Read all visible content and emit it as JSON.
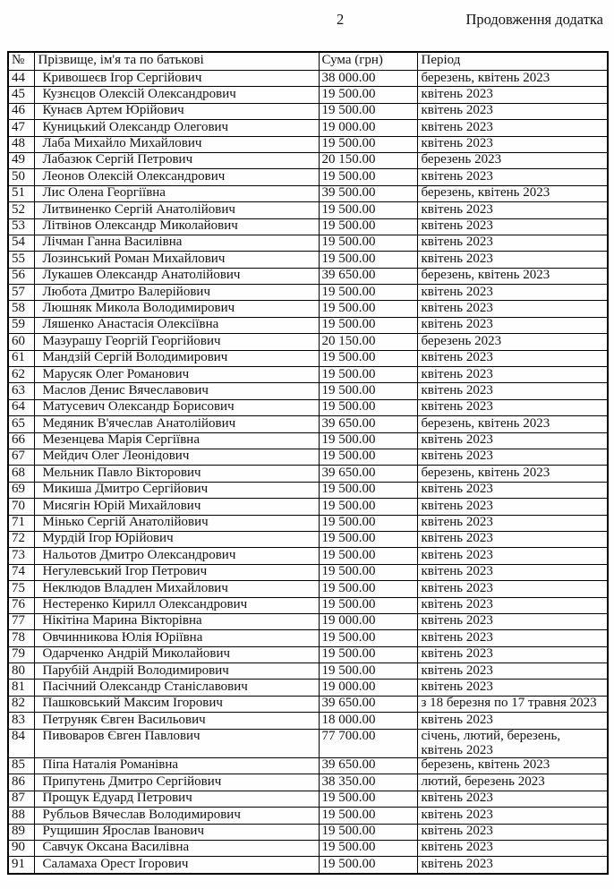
{
  "page": {
    "page_number": "2",
    "continuation_note": "Продовження додатка"
  },
  "table": {
    "headers": {
      "num": "№",
      "name": "Прізвище, ім'я та по батькові",
      "sum": "Сума (грн)",
      "period": "Період"
    },
    "rows": [
      {
        "num": "44",
        "name": "Кривошеєв Ігор Сергійович",
        "sum": "38 000.00",
        "period": "березень, квітень 2023"
      },
      {
        "num": "45",
        "name": "Кузнєцов Олексій Олександрович",
        "sum": "19 500.00",
        "period": "квітень 2023"
      },
      {
        "num": "46",
        "name": "Кунаєв Артем Юрійович",
        "sum": "19 500.00",
        "period": "квітень 2023"
      },
      {
        "num": "47",
        "name": "Куницький Олександр Олегович",
        "sum": "19 000.00",
        "period": "квітень 2023"
      },
      {
        "num": "48",
        "name": "Лаба Михайло Михайлович",
        "sum": "19 500.00",
        "period": "квітень 2023"
      },
      {
        "num": "49",
        "name": "Лабазюк Сергій Петрович",
        "sum": "20 150.00",
        "period": "березень 2023"
      },
      {
        "num": "50",
        "name": "Леонов Олексій Олександрович",
        "sum": "19 500.00",
        "period": "квітень 2023"
      },
      {
        "num": "51",
        "name": "Лис Олена Георгіївна",
        "sum": "39 500.00",
        "period": "березень, квітень 2023"
      },
      {
        "num": "52",
        "name": "Литвиненко Сергій Анатолійович",
        "sum": "19 500.00",
        "period": "квітень 2023"
      },
      {
        "num": "53",
        "name": "Літвінов Олександр Миколайович",
        "sum": "19 500.00",
        "period": "квітень 2023"
      },
      {
        "num": "54",
        "name": "Лічман Ганна Василівна",
        "sum": "19 500.00",
        "period": "квітень 2023"
      },
      {
        "num": "55",
        "name": "Лозинський Роман Михайлович",
        "sum": "19 500.00",
        "period": "квітень 2023"
      },
      {
        "num": "56",
        "name": "Лукашев Олександр Анатолійович",
        "sum": "39 650.00",
        "period": "березень, квітень 2023"
      },
      {
        "num": "57",
        "name": "Любота Дмитро Валерійович",
        "sum": "19 500.00",
        "period": "квітень 2023"
      },
      {
        "num": "58",
        "name": "Люшняк Микола Володимирович",
        "sum": "19 500.00",
        "period": "квітень 2023"
      },
      {
        "num": "59",
        "name": "Ляшенко Анастасія Олексіївна",
        "sum": "19 500.00",
        "period": "квітень 2023"
      },
      {
        "num": "60",
        "name": "Мазурашу Георгій Георгійович",
        "sum": "20 150.00",
        "period": "березень 2023"
      },
      {
        "num": "61",
        "name": "Мандзій Сергій Володимирович",
        "sum": "19 500.00",
        "period": "квітень 2023"
      },
      {
        "num": "62",
        "name": "Марусяк Олег Романович",
        "sum": "19 500.00",
        "period": "квітень 2023"
      },
      {
        "num": "63",
        "name": "Маслов Денис Вячеславович",
        "sum": "19 500.00",
        "period": "квітень 2023"
      },
      {
        "num": "64",
        "name": "Матусевич Олександр Борисович",
        "sum": "19 500.00",
        "period": "квітень 2023"
      },
      {
        "num": "65",
        "name": "Медяник В'ячеслав Анатолійович",
        "sum": "39 650.00",
        "period": "березень, квітень 2023"
      },
      {
        "num": "66",
        "name": "Мезенцева Марія Сергіївна",
        "sum": "19 500.00",
        "period": "квітень 2023"
      },
      {
        "num": "67",
        "name": "Мейдич Олег Леонідович",
        "sum": "19 500.00",
        "period": "квітень 2023"
      },
      {
        "num": "68",
        "name": "Мельник Павло Вікторович",
        "sum": "39 650.00",
        "period": "березень, квітень 2023"
      },
      {
        "num": "69",
        "name": "Микиша Дмитро Сергійович",
        "sum": "19 500.00",
        "period": "квітень 2023"
      },
      {
        "num": "70",
        "name": "Мисягін Юрій Михайлович",
        "sum": "19 500.00",
        "period": "квітень 2023"
      },
      {
        "num": "71",
        "name": "Мінько Сергій Анатолійович",
        "sum": "19 500.00",
        "period": "квітень 2023"
      },
      {
        "num": "72",
        "name": "Мурдій Ігор Юрійович",
        "sum": "19 500.00",
        "period": "квітень 2023"
      },
      {
        "num": "73",
        "name": "Нальотов Дмитро Олександрович",
        "sum": "19 500.00",
        "period": "квітень 2023"
      },
      {
        "num": "74",
        "name": "Негулевський Ігор Петрович",
        "sum": "19 500.00",
        "period": "квітень 2023"
      },
      {
        "num": "75",
        "name": "Неклюдов Владлен Михайлович",
        "sum": "19 500.00",
        "period": "квітень 2023"
      },
      {
        "num": "76",
        "name": "Нестеренко Кирилл Олександрович",
        "sum": "19 500.00",
        "period": "квітень 2023"
      },
      {
        "num": "77",
        "name": "Нікітіна Марина Вікторівна",
        "sum": "19 000.00",
        "period": "квітень 2023"
      },
      {
        "num": "78",
        "name": "Овчинникова Юлія Юріївна",
        "sum": "19 500.00",
        "period": "квітень 2023"
      },
      {
        "num": "79",
        "name": "Одарченко Андрій Миколайович",
        "sum": "19 500.00",
        "period": "квітень 2023"
      },
      {
        "num": "80",
        "name": "Парубій Андрій Володимирович",
        "sum": "19 500.00",
        "period": "квітень 2023"
      },
      {
        "num": "81",
        "name": "Пасічний Олександр Станіславович",
        "sum": "19 000.00",
        "period": "квітень 2023"
      },
      {
        "num": "82",
        "name": "Пашковський Максим Ігорович",
        "sum": "39 650.00",
        "period": "з 18 березня по 17 травня 2023",
        "period_clipped": true
      },
      {
        "num": "83",
        "name": "Петруняк Євген Васильович",
        "sum": "18 000.00",
        "period": "квітень 2023"
      },
      {
        "num": "84",
        "name": "Пивоваров Євген Павлович",
        "sum": "77 700.00",
        "period": "січень, лютий, березень, квітень 2023"
      },
      {
        "num": "85",
        "name": "Піпа Наталія Романівна",
        "sum": "39 650.00",
        "period": "березень, квітень 2023"
      },
      {
        "num": "86",
        "name": "Припутень Дмитро Сергійович",
        "sum": "38 350.00",
        "period": "лютий, березень 2023"
      },
      {
        "num": "87",
        "name": "Прощук Едуард Петрович",
        "sum": "19 500.00",
        "period": "квітень 2023"
      },
      {
        "num": "88",
        "name": "Рубльов Вячеслав Володимирович",
        "sum": "19 500.00",
        "period": "квітень 2023"
      },
      {
        "num": "89",
        "name": "Рущишин Ярослав Іванович",
        "sum": "19 500.00",
        "period": "квітень 2023"
      },
      {
        "num": "90",
        "name": "Савчук Оксана Василівна",
        "sum": "19 500.00",
        "period": "квітень 2023"
      },
      {
        "num": "91",
        "name": "Саламаха Орест Ігорович",
        "sum": "19 500.00",
        "period": "квітень 2023"
      }
    ]
  }
}
